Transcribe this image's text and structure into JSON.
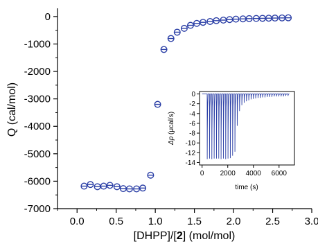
{
  "chart_data": [
    {
      "type": "scatter",
      "xlabel_parts": [
        "[DHPP]/[",
        "2",
        "] (mol/mol)"
      ],
      "ylabel": "Q (cal/mol)",
      "xlim": [
        -0.25,
        3.0
      ],
      "ylim": [
        -7000,
        300
      ],
      "xticks": [
        "0.0",
        "0.5",
        "1.0",
        "1.5",
        "2.0",
        "2.5",
        "3.0"
      ],
      "xtick_values": [
        0.0,
        0.5,
        1.0,
        1.5,
        2.0,
        2.5,
        3.0
      ],
      "yticks": [
        "0",
        "-1000",
        "-2000",
        "-3000",
        "-4000",
        "-5000",
        "-6000",
        "-7000"
      ],
      "ytick_values": [
        0,
        -1000,
        -2000,
        -3000,
        -4000,
        -5000,
        -6000,
        -7000
      ],
      "marker_color": "#2b3fa6",
      "grid": false,
      "points": [
        {
          "x": 0.09,
          "y": -6180
        },
        {
          "x": 0.17,
          "y": -6120
        },
        {
          "x": 0.26,
          "y": -6200
        },
        {
          "x": 0.34,
          "y": -6180
        },
        {
          "x": 0.42,
          "y": -6150
        },
        {
          "x": 0.51,
          "y": -6200
        },
        {
          "x": 0.59,
          "y": -6270
        },
        {
          "x": 0.67,
          "y": -6280
        },
        {
          "x": 0.76,
          "y": -6280
        },
        {
          "x": 0.84,
          "y": -6250
        },
        {
          "x": 0.94,
          "y": -5780
        },
        {
          "x": 1.03,
          "y": -3200
        },
        {
          "x": 1.11,
          "y": -1200
        },
        {
          "x": 1.2,
          "y": -800
        },
        {
          "x": 1.28,
          "y": -570
        },
        {
          "x": 1.37,
          "y": -430
        },
        {
          "x": 1.45,
          "y": -320
        },
        {
          "x": 1.53,
          "y": -250
        },
        {
          "x": 1.61,
          "y": -210
        },
        {
          "x": 1.7,
          "y": -180
        },
        {
          "x": 1.78,
          "y": -150
        },
        {
          "x": 1.87,
          "y": -130
        },
        {
          "x": 1.95,
          "y": -110
        },
        {
          "x": 2.03,
          "y": -95
        },
        {
          "x": 2.12,
          "y": -85
        },
        {
          "x": 2.2,
          "y": -75
        },
        {
          "x": 2.29,
          "y": -70
        },
        {
          "x": 2.37,
          "y": -65
        },
        {
          "x": 2.45,
          "y": -60
        },
        {
          "x": 2.53,
          "y": -55
        },
        {
          "x": 2.62,
          "y": -50
        },
        {
          "x": 2.7,
          "y": -45
        }
      ]
    },
    {
      "type": "line",
      "xlabel": "time (s)",
      "ylabel_symbol": "Δp",
      "ylabel_unit": " (μcal/s)",
      "xlim": [
        -200,
        7200
      ],
      "ylim": [
        -14.5,
        0.5
      ],
      "xticks": [
        "0",
        "2000",
        "4000",
        "6000"
      ],
      "xtick_values": [
        0,
        2000,
        4000,
        6000
      ],
      "yticks": [
        "0",
        "-2",
        "-4",
        "-6",
        "-8",
        "-10",
        "-12",
        "-14"
      ],
      "ytick_values": [
        0,
        -2,
        -4,
        -6,
        -8,
        -10,
        -12,
        -14
      ],
      "line_color": "#2b3fa6",
      "injection_times": [
        400,
        580,
        760,
        940,
        1120,
        1300,
        1480,
        1660,
        1840,
        2020,
        2200,
        2380,
        2560,
        2740,
        2920,
        3100,
        3280,
        3460,
        3640,
        3820,
        4000,
        4180,
        4360,
        4540,
        4720,
        4900,
        5080,
        5260,
        5440,
        5620,
        5800,
        5980,
        6160,
        6340,
        6520,
        6700
      ],
      "peak_values": [
        -13.3,
        -13.2,
        -13.3,
        -13.2,
        -13.2,
        -13.2,
        -13.3,
        -13.2,
        -13.3,
        -13.2,
        -13.1,
        -12.6,
        -11.8,
        -6.5,
        -3.5,
        -2.3,
        -1.8,
        -1.5,
        -1.3,
        -1.1,
        -1.0,
        -0.9,
        -0.8,
        -0.8,
        -0.7,
        -0.7,
        -0.6,
        -0.6,
        -0.6,
        -0.5,
        -0.5,
        -0.5,
        -0.5,
        -0.5,
        -0.4,
        -0.4
      ]
    }
  ]
}
